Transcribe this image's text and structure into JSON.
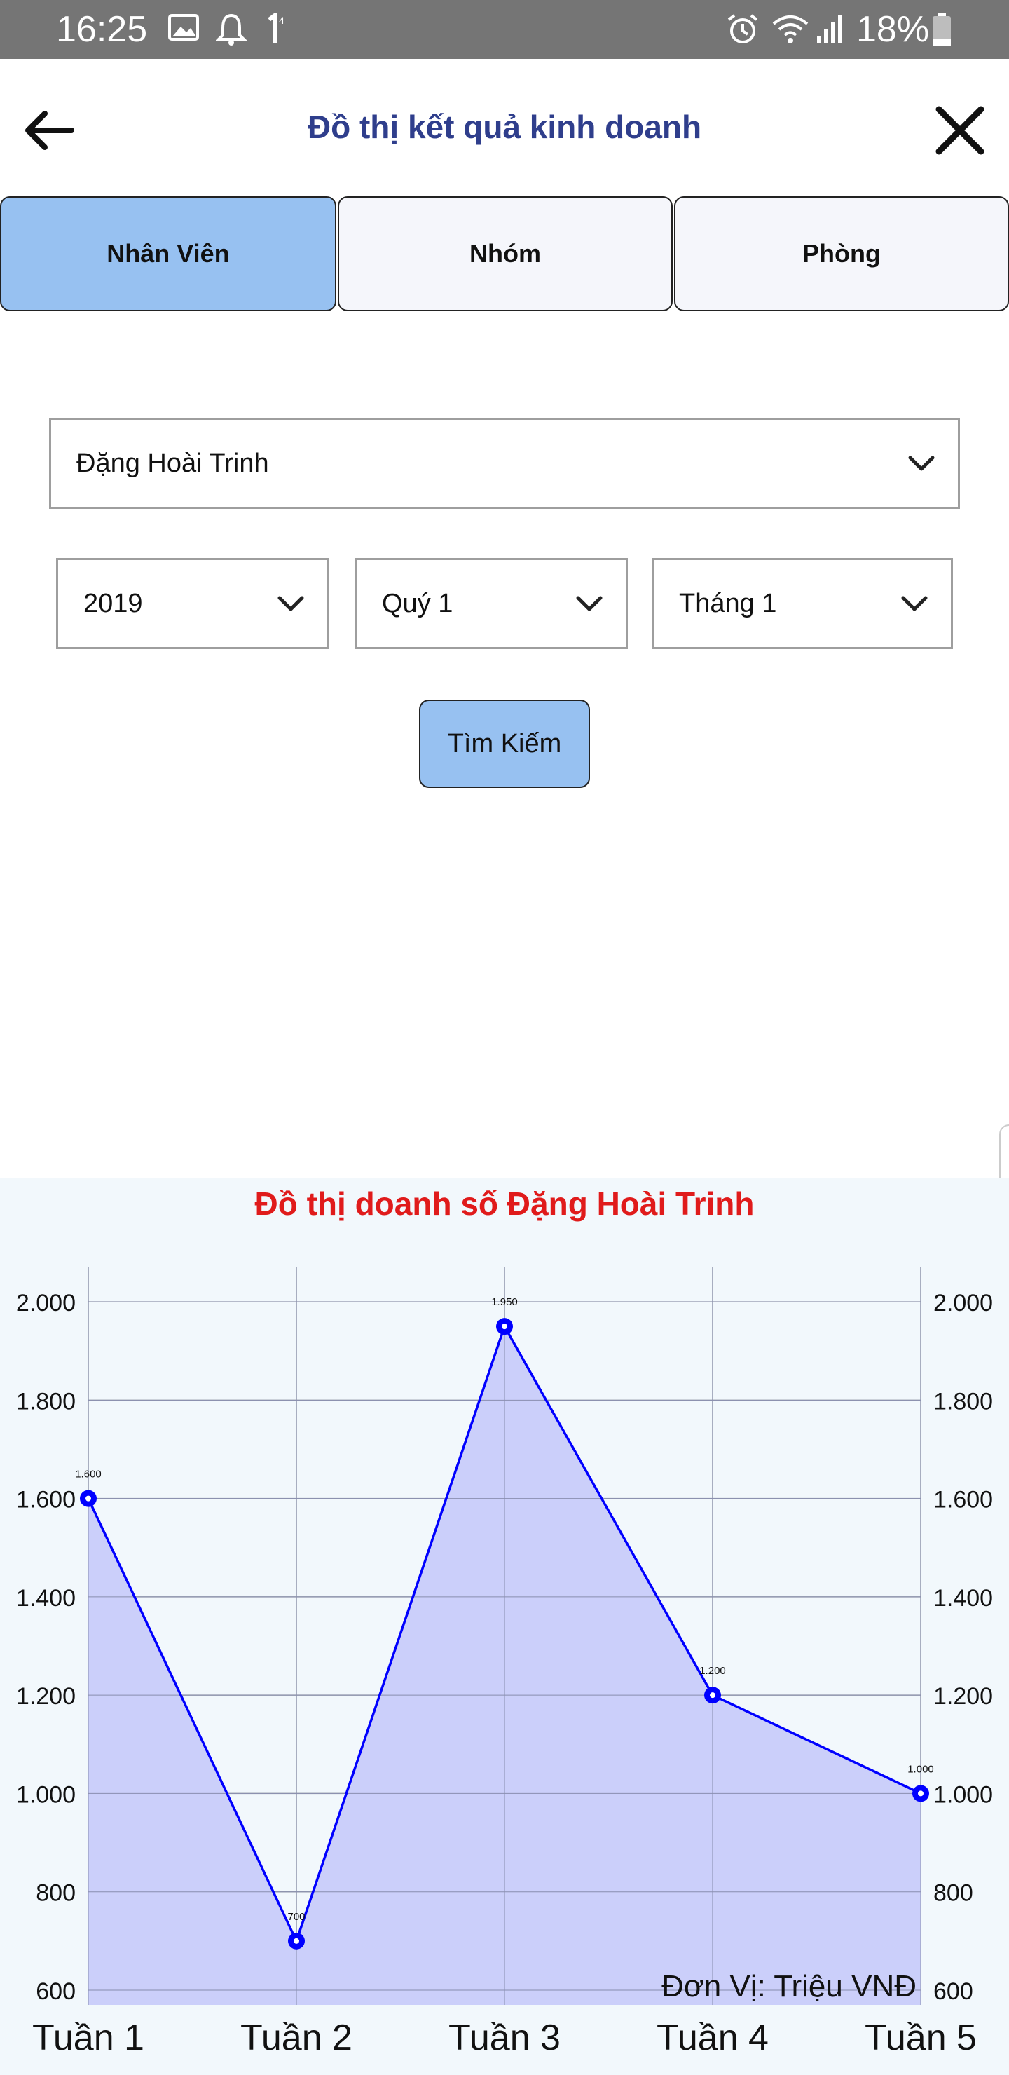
{
  "status_bar": {
    "time": "16:25",
    "icons": [
      "image-icon",
      "bell-icon",
      "sim-one-icon",
      "alarm-icon",
      "wifi-icon",
      "signal-icon",
      "battery-icon"
    ],
    "battery": "18%"
  },
  "header": {
    "title": "Đồ thị kết quả kinh doanh",
    "back_icon": "arrow-left-icon",
    "close_icon": "close-icon"
  },
  "tabs": [
    {
      "label": "Nhân Viên",
      "active": true
    },
    {
      "label": "Nhóm",
      "active": false
    },
    {
      "label": "Phòng",
      "active": false
    }
  ],
  "filters": {
    "employee": "Đặng Hoài Trinh",
    "year": "2019",
    "quarter": "Quý 1",
    "month": "Tháng 1"
  },
  "search_button": "Tìm Kiếm",
  "colors": {
    "accent": "#97c1f1",
    "title": "#2f3e8c",
    "chart_title": "#e01b1b",
    "line": "#0000ff",
    "area": "#c8ccfa"
  },
  "chart_data": {
    "type": "area",
    "title": "Đồ thị doanh số Đặng Hoài Trinh",
    "unit_label": "Đơn Vị: Triệu VNĐ",
    "categories": [
      "Tuần 1",
      "Tuần 2",
      "Tuần 3",
      "Tuần 4",
      "Tuần 5"
    ],
    "values": [
      1600,
      700,
      1950,
      1200,
      1000
    ],
    "value_labels": [
      "1.600",
      "700",
      "1.950",
      "1.200",
      "1.000"
    ],
    "yticks": [
      600,
      800,
      1000,
      1200,
      1400,
      1600,
      1800,
      2000
    ],
    "ytick_labels": [
      "600",
      "800",
      "1.000",
      "1.200",
      "1.400",
      "1.600",
      "1.800",
      "2.000"
    ],
    "ylim": [
      570,
      2070
    ],
    "grid": true,
    "dual_y_axis": true
  }
}
